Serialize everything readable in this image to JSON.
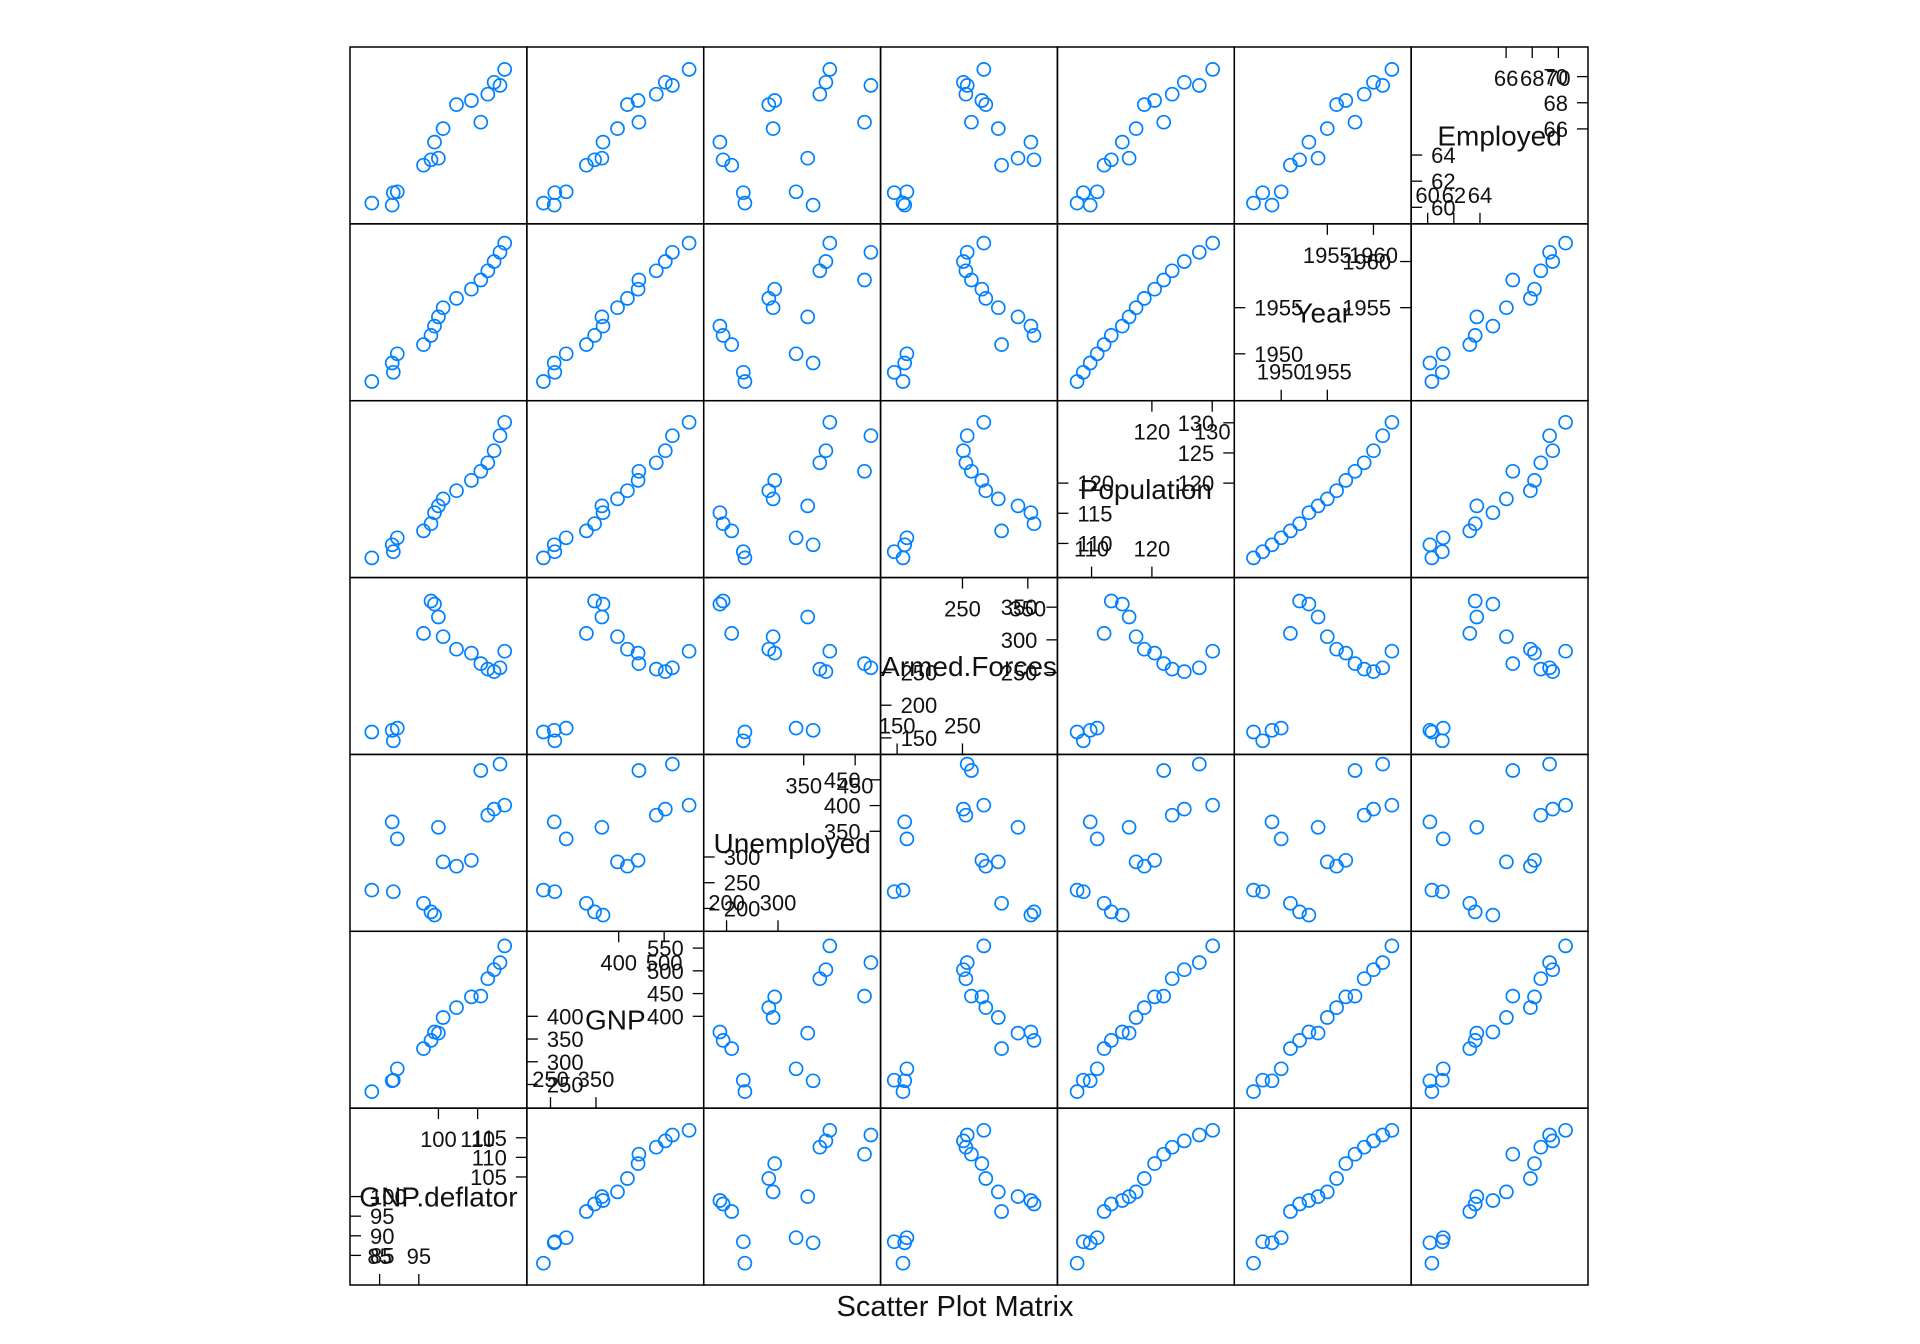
{
  "chart_data": {
    "type": "scatter",
    "title": "Scatter Plot Matrix",
    "xlabel": "Scatter Plot Matrix",
    "point_color": "#0080ff",
    "panel_border_color": "#000000",
    "variables": [
      {
        "name": "GNP.deflator",
        "label": "GNP.deflator",
        "range": [
          80,
          120
        ],
        "lower": [
          {
            "v": 85,
            "t": "85"
          },
          {
            "v": 95,
            "t": "95"
          }
        ],
        "upper": [
          {
            "v": 100,
            "t": "100"
          },
          {
            "v": 110,
            "t": "110"
          }
        ],
        "left": [
          {
            "v": 85,
            "t": "85"
          },
          {
            "v": 90,
            "t": "90"
          },
          {
            "v": 95,
            "t": "95"
          },
          {
            "v": 100,
            "t": "100"
          }
        ],
        "right": [
          {
            "v": 105,
            "t": "105"
          },
          {
            "v": 110,
            "t": "110"
          },
          {
            "v": 115,
            "t": "115"
          }
        ]
      },
      {
        "name": "GNP",
        "label": "GNP",
        "range": [
          220,
          565
        ],
        "lower": [
          {
            "v": 250,
            "t": "250"
          },
          {
            "v": 350,
            "t": "350"
          }
        ],
        "upper": [
          {
            "v": 400,
            "t": "400"
          },
          {
            "v": 500,
            "t": "500"
          }
        ],
        "left": [
          {
            "v": 250,
            "t": "250"
          },
          {
            "v": 300,
            "t": "300"
          },
          {
            "v": 350,
            "t": "350"
          },
          {
            "v": 400,
            "t": "400"
          }
        ],
        "right": [
          {
            "v": 400,
            "t": "400"
          },
          {
            "v": 450,
            "t": "450"
          },
          {
            "v": 500,
            "t": "500"
          },
          {
            "v": 550,
            "t": "550"
          }
        ]
      },
      {
        "name": "Unemployed",
        "label": "Unemployed",
        "range": [
          175,
          480
        ],
        "lower": [
          {
            "v": 200,
            "t": "200"
          },
          {
            "v": 300,
            "t": "300"
          }
        ],
        "upper": [
          {
            "v": 350,
            "t": "350"
          },
          {
            "v": 450,
            "t": "450"
          }
        ],
        "left": [
          {
            "v": 200,
            "t": "200"
          },
          {
            "v": 250,
            "t": "250"
          },
          {
            "v": 300,
            "t": "300"
          }
        ],
        "right": [
          {
            "v": 350,
            "t": "350"
          },
          {
            "v": 400,
            "t": "400"
          },
          {
            "v": 450,
            "t": "450"
          }
        ]
      },
      {
        "name": "Armed.Forces",
        "label": "Armed.Forces",
        "range": [
          140,
          380
        ],
        "lower": [
          {
            "v": 150,
            "t": "150"
          },
          {
            "v": 250,
            "t": "250"
          }
        ],
        "upper": [
          {
            "v": 250,
            "t": "250"
          },
          {
            "v": 350,
            "t": "350"
          }
        ],
        "left": [
          {
            "v": 150,
            "t": "150"
          },
          {
            "v": 200,
            "t": "200"
          },
          {
            "v": 250,
            "t": "250"
          }
        ],
        "right": [
          {
            "v": 250,
            "t": "250"
          },
          {
            "v": 300,
            "t": "300"
          },
          {
            "v": 350,
            "t": "350"
          }
        ]
      },
      {
        "name": "Population",
        "label": "Population",
        "range": [
          106,
          132
        ],
        "lower": [
          {
            "v": 110,
            "t": "110"
          },
          {
            "v": 120,
            "t": "120"
          }
        ],
        "upper": [
          {
            "v": 120,
            "t": "120"
          },
          {
            "v": 130,
            "t": "130"
          }
        ],
        "left": [
          {
            "v": 110,
            "t": "110"
          },
          {
            "v": 115,
            "t": "115"
          },
          {
            "v": 120,
            "t": "120"
          }
        ],
        "right": [
          {
            "v": 120,
            "t": "120"
          },
          {
            "v": 125,
            "t": "125"
          },
          {
            "v": 130,
            "t": "130"
          }
        ]
      },
      {
        "name": "Year",
        "label": "Year",
        "range": [
          1946,
          1963
        ],
        "lower": [
          {
            "v": 1950,
            "t": "1950"
          },
          {
            "v": 1955,
            "t": "1955"
          }
        ],
        "upper": [
          {
            "v": 1955,
            "t": "1955"
          },
          {
            "v": 1960,
            "t": "1960"
          }
        ],
        "left": [
          {
            "v": 1950,
            "t": "1950"
          },
          {
            "v": 1955,
            "t": "1955"
          }
        ],
        "right": [
          {
            "v": 1955,
            "t": "1955"
          },
          {
            "v": 1960,
            "t": "1960"
          }
        ]
      },
      {
        "name": "Employed",
        "label": "Employed",
        "range": [
          59.5,
          71.5
        ],
        "lower": [
          {
            "v": 60,
            "t": "60"
          },
          {
            "v": 62,
            "t": "62"
          },
          {
            "v": 64,
            "t": "64"
          }
        ],
        "upper": [
          {
            "v": 66,
            "t": "66"
          },
          {
            "v": 68,
            "t": "68"
          },
          {
            "v": 70,
            "t": "70"
          }
        ],
        "left": [
          {
            "v": 60,
            "t": "60"
          },
          {
            "v": 62,
            "t": "62"
          },
          {
            "v": 64,
            "t": "64"
          }
        ],
        "right": [
          {
            "v": 66,
            "t": "66"
          },
          {
            "v": 68,
            "t": "68"
          },
          {
            "v": 70,
            "t": "70"
          }
        ]
      }
    ],
    "observations": [
      {
        "GNP.deflator": 83.0,
        "GNP": 234.289,
        "Unemployed": 235.6,
        "Armed.Forces": 159.0,
        "Population": 107.608,
        "Year": 1947,
        "Employed": 60.323
      },
      {
        "GNP.deflator": 88.5,
        "GNP": 259.426,
        "Unemployed": 232.5,
        "Armed.Forces": 145.6,
        "Population": 108.632,
        "Year": 1948,
        "Employed": 61.122
      },
      {
        "GNP.deflator": 88.2,
        "GNP": 258.054,
        "Unemployed": 368.2,
        "Armed.Forces": 161.6,
        "Population": 109.773,
        "Year": 1949,
        "Employed": 60.171
      },
      {
        "GNP.deflator": 89.5,
        "GNP": 284.599,
        "Unemployed": 335.1,
        "Armed.Forces": 165.0,
        "Population": 110.929,
        "Year": 1950,
        "Employed": 61.187
      },
      {
        "GNP.deflator": 96.2,
        "GNP": 328.975,
        "Unemployed": 209.9,
        "Armed.Forces": 309.9,
        "Population": 112.075,
        "Year": 1951,
        "Employed": 63.221
      },
      {
        "GNP.deflator": 98.1,
        "GNP": 346.999,
        "Unemployed": 193.2,
        "Armed.Forces": 359.4,
        "Population": 113.27,
        "Year": 1952,
        "Employed": 63.639
      },
      {
        "GNP.deflator": 99.0,
        "GNP": 365.385,
        "Unemployed": 187.0,
        "Armed.Forces": 354.7,
        "Population": 115.094,
        "Year": 1953,
        "Employed": 64.989
      },
      {
        "GNP.deflator": 100.0,
        "GNP": 363.112,
        "Unemployed": 357.8,
        "Armed.Forces": 335.0,
        "Population": 116.219,
        "Year": 1954,
        "Employed": 63.761
      },
      {
        "GNP.deflator": 101.2,
        "GNP": 397.469,
        "Unemployed": 290.4,
        "Armed.Forces": 304.8,
        "Population": 117.388,
        "Year": 1955,
        "Employed": 66.019
      },
      {
        "GNP.deflator": 104.6,
        "GNP": 419.18,
        "Unemployed": 282.2,
        "Armed.Forces": 285.7,
        "Population": 118.734,
        "Year": 1956,
        "Employed": 67.857
      },
      {
        "GNP.deflator": 108.4,
        "GNP": 442.769,
        "Unemployed": 293.6,
        "Armed.Forces": 279.8,
        "Population": 120.445,
        "Year": 1957,
        "Employed": 68.169
      },
      {
        "GNP.deflator": 110.8,
        "GNP": 444.546,
        "Unemployed": 468.1,
        "Armed.Forces": 263.7,
        "Population": 121.95,
        "Year": 1958,
        "Employed": 66.513
      },
      {
        "GNP.deflator": 112.6,
        "GNP": 482.704,
        "Unemployed": 381.3,
        "Armed.Forces": 255.2,
        "Population": 123.366,
        "Year": 1959,
        "Employed": 68.655
      },
      {
        "GNP.deflator": 114.2,
        "GNP": 502.601,
        "Unemployed": 393.1,
        "Armed.Forces": 251.4,
        "Population": 125.368,
        "Year": 1960,
        "Employed": 69.564
      },
      {
        "GNP.deflator": 115.7,
        "GNP": 518.173,
        "Unemployed": 480.6,
        "Armed.Forces": 257.2,
        "Population": 127.852,
        "Year": 1961,
        "Employed": 69.331
      },
      {
        "GNP.deflator": 116.9,
        "GNP": 554.894,
        "Unemployed": 400.7,
        "Armed.Forces": 282.7,
        "Population": 130.081,
        "Year": 1962,
        "Employed": 70.551
      }
    ]
  }
}
